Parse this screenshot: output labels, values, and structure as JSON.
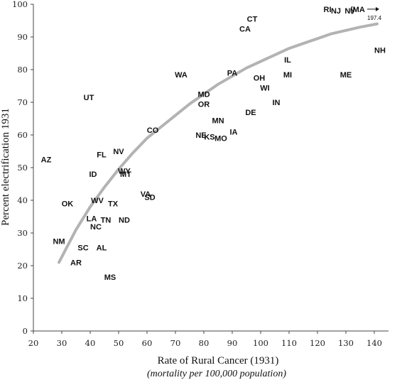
{
  "chart_data": {
    "type": "scatter",
    "xlabel": "Rate of Rural Cancer (1931)",
    "xlabel_sub": "(mortality per 100,000 population)",
    "ylabel": "Percent electrification 1931",
    "xlim": [
      20,
      145
    ],
    "ylim": [
      0,
      100
    ],
    "xticks": [
      20,
      30,
      40,
      50,
      60,
      70,
      80,
      90,
      100,
      110,
      120,
      130,
      140
    ],
    "yticks": [
      0,
      10,
      20,
      30,
      40,
      50,
      60,
      70,
      80,
      90,
      100
    ],
    "points": [
      {
        "label": "AZ",
        "x": 24.5,
        "y": 52.5
      },
      {
        "label": "UT",
        "x": 39.5,
        "y": 71.5
      },
      {
        "label": "FL",
        "x": 44,
        "y": 54
      },
      {
        "label": "ID",
        "x": 41,
        "y": 48
      },
      {
        "label": "OK",
        "x": 32,
        "y": 39
      },
      {
        "label": "WV",
        "x": 42.5,
        "y": 40
      },
      {
        "label": "TX",
        "x": 48,
        "y": 39
      },
      {
        "label": "LA",
        "x": 40.5,
        "y": 34.5
      },
      {
        "label": "TN",
        "x": 45.5,
        "y": 34
      },
      {
        "label": "NC",
        "x": 42,
        "y": 32
      },
      {
        "label": "ND",
        "x": 52,
        "y": 34
      },
      {
        "label": "NV",
        "x": 50,
        "y": 55
      },
      {
        "label": "WY",
        "x": 52,
        "y": 49
      },
      {
        "label": "MT",
        "x": 52.5,
        "y": 48
      },
      {
        "label": "VA",
        "x": 59.5,
        "y": 42
      },
      {
        "label": "SD",
        "x": 61,
        "y": 41
      },
      {
        "label": "CO",
        "x": 62,
        "y": 61.5
      },
      {
        "label": "NM",
        "x": 29,
        "y": 27.5
      },
      {
        "label": "SC",
        "x": 37.5,
        "y": 25.5
      },
      {
        "label": "AL",
        "x": 44,
        "y": 25.5
      },
      {
        "label": "AR",
        "x": 35,
        "y": 21
      },
      {
        "label": "MS",
        "x": 47,
        "y": 16.5
      },
      {
        "label": "WA",
        "x": 72,
        "y": 78.5
      },
      {
        "label": "PA",
        "x": 90,
        "y": 79
      },
      {
        "label": "MD",
        "x": 80,
        "y": 72.5
      },
      {
        "label": "OR",
        "x": 80,
        "y": 69.5
      },
      {
        "label": "MN",
        "x": 85,
        "y": 64.5
      },
      {
        "label": "NE",
        "x": 79,
        "y": 60
      },
      {
        "label": "KS",
        "x": 82,
        "y": 59.5
      },
      {
        "label": "MO",
        "x": 86,
        "y": 59
      },
      {
        "label": "IA",
        "x": 90.5,
        "y": 61
      },
      {
        "label": "DE",
        "x": 96.5,
        "y": 67
      },
      {
        "label": "OH",
        "x": 99.5,
        "y": 77.5
      },
      {
        "label": "WI",
        "x": 101.5,
        "y": 74.5
      },
      {
        "label": "IN",
        "x": 105.5,
        "y": 70
      },
      {
        "label": "IL",
        "x": 109.5,
        "y": 83
      },
      {
        "label": "MI",
        "x": 109.5,
        "y": 78.5
      },
      {
        "label": "ME",
        "x": 130,
        "y": 78.5
      },
      {
        "label": "CT",
        "x": 97,
        "y": 95.5
      },
      {
        "label": "CA",
        "x": 94.5,
        "y": 92.5
      },
      {
        "label": "RI",
        "x": 123.5,
        "y": 98.5
      },
      {
        "label": "NJ",
        "x": 126.5,
        "y": 98
      },
      {
        "label": "NY",
        "x": 131.5,
        "y": 98
      },
      {
        "label": "NH",
        "x": 142,
        "y": 86
      }
    ],
    "trend_line": [
      {
        "x": 29,
        "y": 21
      },
      {
        "x": 35,
        "y": 31
      },
      {
        "x": 40,
        "y": 38
      },
      {
        "x": 45,
        "y": 44
      },
      {
        "x": 50,
        "y": 49.5
      },
      {
        "x": 55,
        "y": 54.5
      },
      {
        "x": 60,
        "y": 59
      },
      {
        "x": 65,
        "y": 62.5
      },
      {
        "x": 70,
        "y": 66
      },
      {
        "x": 75,
        "y": 69.5
      },
      {
        "x": 80,
        "y": 72.5
      },
      {
        "x": 85,
        "y": 75.5
      },
      {
        "x": 90,
        "y": 78
      },
      {
        "x": 95,
        "y": 80.5
      },
      {
        "x": 100,
        "y": 82.5
      },
      {
        "x": 105,
        "y": 84.5
      },
      {
        "x": 110,
        "y": 86.5
      },
      {
        "x": 115,
        "y": 88
      },
      {
        "x": 120,
        "y": 89.5
      },
      {
        "x": 125,
        "y": 91
      },
      {
        "x": 130,
        "y": 92
      },
      {
        "x": 135,
        "y": 93
      },
      {
        "x": 141,
        "y": 94
      }
    ],
    "offscale_note": {
      "label": "(MA",
      "value": "197.4",
      "x": 138,
      "y": 98.5
    },
    "colors": {
      "trend": "#b3b3b3",
      "axis": "#444444",
      "text": "#111111"
    }
  }
}
